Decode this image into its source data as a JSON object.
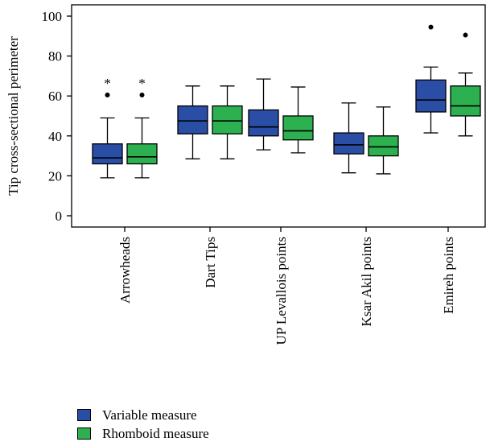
{
  "chart_data": {
    "type": "box",
    "ylabel": "Tip cross-sectional perimeter",
    "xlabel": "",
    "ylim": [
      -5,
      105
    ],
    "yticks": [
      0,
      20,
      40,
      60,
      80,
      100
    ],
    "categories": [
      "Arrowheads",
      "Dart Tips",
      "UP Levallois points",
      "Ksar Akil points",
      "Emireh points"
    ],
    "legend_position": "bottom-left",
    "series": [
      {
        "name": "Variable measure",
        "color": "#2a4ea6",
        "boxes": [
          {
            "min": 19,
            "q1": 26,
            "median": 29,
            "q3": 36,
            "max": 49,
            "outliers": [
              60.5
            ],
            "marker": "*"
          },
          {
            "min": 28.5,
            "q1": 41,
            "median": 47.5,
            "q3": 55,
            "max": 65,
            "outliers": [],
            "marker": ""
          },
          {
            "min": 33,
            "q1": 40,
            "median": 44.5,
            "q3": 53,
            "max": 68.5,
            "outliers": [],
            "marker": ""
          },
          {
            "min": 21.5,
            "q1": 31,
            "median": 35.5,
            "q3": 41.5,
            "max": 56.5,
            "outliers": [],
            "marker": ""
          },
          {
            "min": 41.5,
            "q1": 52,
            "median": 58,
            "q3": 68,
            "max": 74.5,
            "outliers": [
              94.5
            ],
            "marker": ""
          }
        ]
      },
      {
        "name": "Rhomboid measure",
        "color": "#2db04f",
        "boxes": [
          {
            "min": 19,
            "q1": 26,
            "median": 29.5,
            "q3": 36,
            "max": 49,
            "outliers": [
              60.5
            ],
            "marker": "*"
          },
          {
            "min": 28.5,
            "q1": 41,
            "median": 47.5,
            "q3": 55,
            "max": 65,
            "outliers": [],
            "marker": ""
          },
          {
            "min": 31.5,
            "q1": 38,
            "median": 42.5,
            "q3": 50,
            "max": 64.5,
            "outliers": [],
            "marker": ""
          },
          {
            "min": 21,
            "q1": 30,
            "median": 34.5,
            "q3": 40,
            "max": 54.5,
            "outliers": [],
            "marker": ""
          },
          {
            "min": 40,
            "q1": 50,
            "median": 55,
            "q3": 65,
            "max": 71.5,
            "outliers": [
              90.5
            ],
            "marker": ""
          }
        ]
      }
    ]
  }
}
